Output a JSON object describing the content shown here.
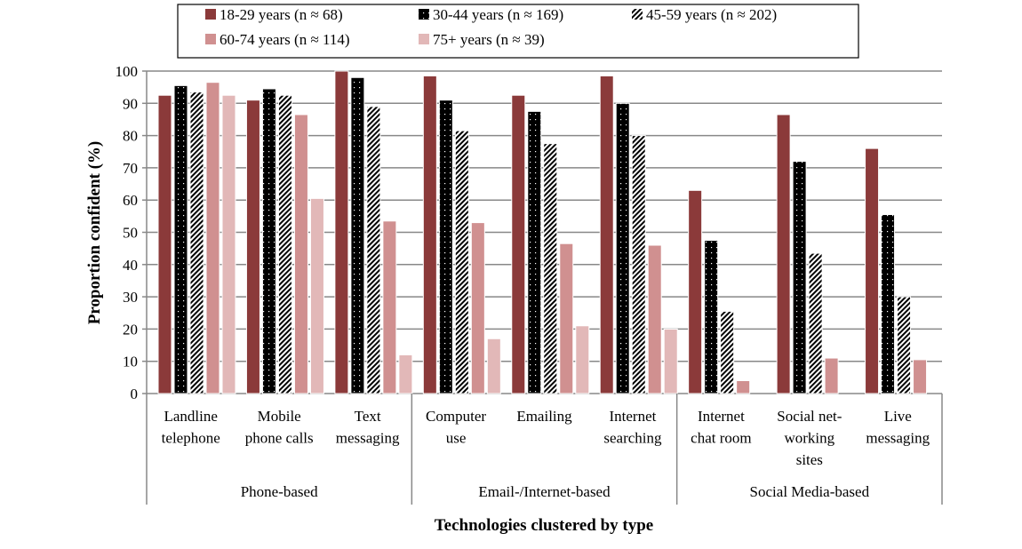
{
  "chart_data": {
    "type": "bar",
    "ylabel": "Proportion confident (%)",
    "xlabel": "Technologies clustered by type",
    "ylim": [
      0,
      100
    ],
    "yticks": [
      "0",
      "10",
      "20",
      "30",
      "40",
      "50",
      "60",
      "70",
      "80",
      "90",
      "100"
    ],
    "grid": true,
    "legend_position": "top",
    "categories": [
      {
        "lines": [
          "Landline",
          "telephone"
        ]
      },
      {
        "lines": [
          "Mobile",
          "phone calls"
        ]
      },
      {
        "lines": [
          "Text",
          "messaging"
        ]
      },
      {
        "lines": [
          "Computer",
          "use"
        ]
      },
      {
        "lines": [
          "Emailing"
        ]
      },
      {
        "lines": [
          "Internet",
          "searching"
        ]
      },
      {
        "lines": [
          "Internet",
          "chat room"
        ]
      },
      {
        "lines": [
          "Social net-",
          "working",
          "sites"
        ]
      },
      {
        "lines": [
          "Live",
          "messaging"
        ]
      }
    ],
    "groups": [
      "Phone-based",
      "Email-/Internet-based",
      "Social Media-based"
    ],
    "series": [
      {
        "name": "18-29 years (n ≈ 68)",
        "color": "#8B3A3A",
        "pattern": "solid",
        "values": [
          92.5,
          91,
          100,
          98.5,
          92.5,
          98.5,
          63,
          86.5,
          76
        ]
      },
      {
        "name": "30-44 years (n ≈ 169)",
        "color": "#000000",
        "pattern": "dots",
        "values": [
          95.5,
          94.5,
          98,
          91,
          87.5,
          90,
          47.5,
          72,
          55.5
        ]
      },
      {
        "name": "45-59 years (n ≈ 202)",
        "color": "#000000",
        "pattern": "stripes",
        "values": [
          93.5,
          92.5,
          89,
          81.5,
          77.5,
          80,
          25.5,
          43.5,
          30
        ]
      },
      {
        "name": "60-74 years (n ≈ 114)",
        "color": "#D09090",
        "pattern": "solid",
        "values": [
          96.5,
          86.5,
          53.5,
          53,
          46.5,
          46,
          4,
          11,
          10.5
        ]
      },
      {
        "name": "75+ years (n ≈ 39)",
        "color": "#E2B8B8",
        "pattern": "solid",
        "values": [
          92.5,
          60.5,
          12,
          17,
          21,
          20,
          null,
          null,
          null
        ]
      }
    ]
  }
}
